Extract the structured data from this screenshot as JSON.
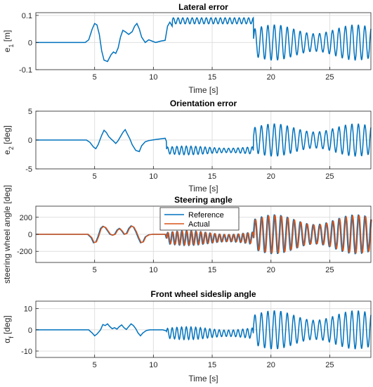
{
  "chart_data": [
    {
      "type": "line",
      "title": "Lateral error",
      "xlabel": "Time [s]",
      "ylabel_main": "e",
      "ylabel_sub": "1",
      "ylabel_rest": " [m]",
      "xlim": [
        0,
        28.5
      ],
      "ylim": [
        -0.1,
        0.11
      ],
      "xticks": [
        5,
        10,
        15,
        20,
        25
      ],
      "yticks": [
        -0.1,
        0,
        0.1
      ],
      "ytick_labels": [
        "-0.1",
        "0",
        "0.1"
      ],
      "grid": true,
      "series": [
        {
          "color": "#0072BD",
          "x": [
            0,
            4.2,
            4.5,
            4.8,
            5.0,
            5.2,
            5.4,
            5.6,
            5.8,
            6.1,
            6.4,
            6.6,
            6.8,
            7.0,
            7.2,
            7.4,
            7.6,
            7.9,
            8.2,
            8.4,
            8.6,
            8.8,
            9.0,
            9.3,
            9.6,
            9.9,
            10.2,
            10.6,
            11.0,
            11.2,
            11.4,
            11.6
          ],
          "y": [
            0,
            0,
            0.01,
            0.05,
            0.07,
            0.065,
            0.03,
            -0.03,
            -0.065,
            -0.07,
            -0.045,
            -0.035,
            -0.04,
            -0.02,
            0.02,
            0.045,
            0.04,
            0.03,
            0.04,
            0.06,
            0.07,
            0.05,
            0.02,
            0.0,
            0.01,
            0.005,
            0,
            0.005,
            0.008,
            0.06,
            0.075,
            0.06
          ]
        }
      ],
      "segments": [
        {
          "start": 11.6,
          "end": 18.5,
          "offset": 0.08,
          "amp": 0.011,
          "period": 0.4
        },
        {
          "start": 18.5,
          "end": 28.5,
          "offset": 0.0,
          "amp": 0.065,
          "period": 0.55,
          "drift": [
            0.02,
            -0.03,
            0.02,
            -0.02
          ]
        }
      ]
    },
    {
      "type": "line",
      "title": "Orientation error",
      "xlabel": "Time [s]",
      "ylabel_main": "e",
      "ylabel_sub": "2",
      "ylabel_rest": " [deg]",
      "xlim": [
        0,
        28.5
      ],
      "ylim": [
        -5,
        5
      ],
      "xticks": [
        5,
        10,
        15,
        20,
        25
      ],
      "yticks": [
        -5,
        0,
        5
      ],
      "ytick_labels": [
        "-5",
        "0",
        "5"
      ],
      "grid": true,
      "series": [
        {
          "color": "#0072BD",
          "x": [
            0,
            4.3,
            4.6,
            4.9,
            5.1,
            5.3,
            5.6,
            5.8,
            6.0,
            6.2,
            6.4,
            6.6,
            6.8,
            7.0,
            7.2,
            7.4,
            7.6,
            7.8,
            8.0,
            8.2,
            8.5,
            8.8,
            9.0,
            9.3,
            9.6,
            9.9,
            10.2,
            10.6,
            11.0,
            11.1
          ],
          "y": [
            0,
            0,
            -0.4,
            -1.2,
            -1.5,
            -0.8,
            0.8,
            1.7,
            1.3,
            0.6,
            0.2,
            -0.2,
            -0.6,
            -0.1,
            0.6,
            1.3,
            1.8,
            1.0,
            0.2,
            -0.8,
            -1.8,
            -2.0,
            -1.0,
            -0.3,
            -0.1,
            0,
            0.1,
            0.2,
            0.3,
            -0.2
          ]
        }
      ],
      "segments": [
        {
          "start": 11.1,
          "end": 18.5,
          "offset": -1.8,
          "amp": 0.75,
          "period": 0.4
        },
        {
          "start": 18.5,
          "end": 28.5,
          "offset": 0.0,
          "amp": 2.8,
          "period": 0.55
        }
      ]
    },
    {
      "type": "line",
      "title": "Steering angle",
      "xlabel": "",
      "ylabel": "steering wheel angle  [deg]",
      "xlim": [
        0,
        28.5
      ],
      "ylim": [
        -330,
        330
      ],
      "xticks": [
        5,
        10,
        15,
        20,
        25
      ],
      "yticks": [
        -200,
        0,
        200
      ],
      "ytick_labels": [
        "-200",
        "0",
        "200"
      ],
      "grid": true,
      "legend": {
        "placement": "top",
        "entries": [
          {
            "name": "Reference",
            "color": "#0072BD"
          },
          {
            "name": "Actual",
            "color": "#D95319"
          }
        ]
      },
      "series": [
        {
          "name": "Reference",
          "color": "#0072BD",
          "x": [
            0,
            4.4,
            4.7,
            4.9,
            5.1,
            5.3,
            5.5,
            5.7,
            5.9,
            6.1,
            6.3,
            6.5,
            6.7,
            6.9,
            7.1,
            7.3,
            7.5,
            7.7,
            7.9,
            8.1,
            8.3,
            8.5,
            8.7,
            8.9,
            9.1,
            9.3,
            9.6,
            9.9,
            10.2,
            10.6,
            11.0,
            11.1
          ],
          "y": [
            0,
            0,
            -40,
            -100,
            -90,
            -20,
            70,
            95,
            80,
            40,
            0,
            -10,
            0,
            50,
            70,
            40,
            0,
            10,
            70,
            100,
            85,
            30,
            -40,
            -100,
            -90,
            -30,
            -5,
            0,
            0,
            0,
            0,
            -50
          ]
        }
      ],
      "segments": [
        {
          "start": 11.1,
          "end": 18.5,
          "offset": -45,
          "amp": 85,
          "period": 0.4
        },
        {
          "start": 18.5,
          "end": 28.5,
          "offset": 0,
          "amp": 230,
          "period": 0.55
        }
      ]
    },
    {
      "type": "line",
      "title": "Front wheel sideslip angle",
      "xlabel": "Time [s]",
      "ylabel_main": "α",
      "ylabel_sub": "f",
      "ylabel_rest": " [deg]",
      "xlim": [
        0,
        28.5
      ],
      "ylim": [
        -13,
        13.5
      ],
      "xticks": [
        5,
        10,
        15,
        20,
        25
      ],
      "yticks": [
        -10,
        0,
        10
      ],
      "ytick_labels": [
        "-10",
        "0",
        "10"
      ],
      "grid": true,
      "series": [
        {
          "color": "#0072BD",
          "x": [
            0,
            4.5,
            4.8,
            5.0,
            5.2,
            5.5,
            5.7,
            5.9,
            6.1,
            6.3,
            6.5,
            6.7,
            6.9,
            7.1,
            7.3,
            7.5,
            7.7,
            7.9,
            8.1,
            8.3,
            8.5,
            8.7,
            8.9,
            9.1,
            9.4,
            9.7,
            10.0,
            10.4,
            10.8,
            11.1
          ],
          "y": [
            0,
            0,
            -1.5,
            -2.8,
            -2.0,
            0,
            2.5,
            2.0,
            2.8,
            1.5,
            0.5,
            1.0,
            0.3,
            1.5,
            2.3,
            1.0,
            0.2,
            1.5,
            2.8,
            2.0,
            0.5,
            -1.5,
            -2.8,
            -1.5,
            -0.3,
            0,
            0,
            0,
            0,
            -0.5
          ]
        }
      ],
      "segments": [
        {
          "start": 11.1,
          "end": 18.5,
          "offset": -1.6,
          "amp": 3.0,
          "period": 0.4
        },
        {
          "start": 18.5,
          "end": 28.5,
          "offset": 0,
          "amp": 9.0,
          "period": 0.55
        }
      ]
    }
  ]
}
